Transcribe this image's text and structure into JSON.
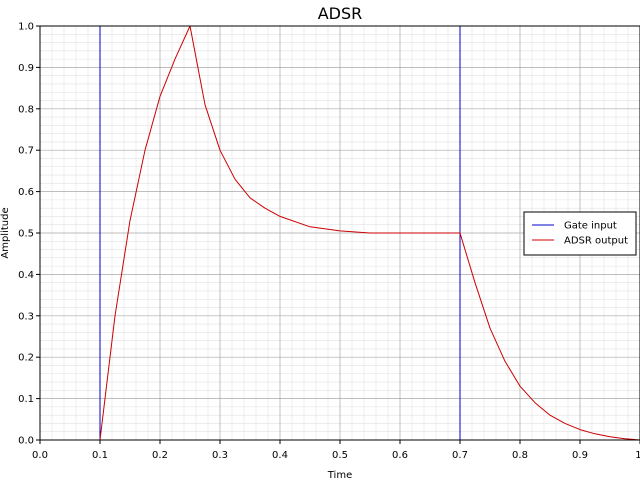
{
  "chart_data": {
    "type": "line",
    "title": "ADSR",
    "xlabel": "Time",
    "ylabel": "Amplitude",
    "xlim": [
      0.0,
      1.0
    ],
    "ylim": [
      0.0,
      1.0
    ],
    "grid": "major and minor",
    "legend_position": "right-middle",
    "xtick_labels": [
      "0.0",
      "0.1",
      "0.2",
      "0.3",
      "0.4",
      "0.5",
      "0.6",
      "0.7",
      "0.8",
      "0.9",
      "1."
    ],
    "ytick_labels": [
      "0.0",
      "0.1",
      "0.2",
      "0.3",
      "0.4",
      "0.5",
      "0.6",
      "0.7",
      "0.8",
      "0.9",
      "1.0"
    ],
    "series": [
      {
        "name": "Gate input",
        "color": "#0000cc",
        "x": [
          0.0,
          0.1,
          0.1,
          0.7,
          0.7,
          1.0
        ],
        "y": [
          0.0,
          0.0,
          1.0,
          1.0,
          0.0,
          0.0
        ]
      },
      {
        "name": "ADSR output",
        "color": "#cc0000",
        "x": [
          0.0,
          0.1,
          0.125,
          0.15,
          0.175,
          0.2,
          0.225,
          0.25,
          0.275,
          0.3,
          0.325,
          0.35,
          0.375,
          0.4,
          0.45,
          0.5,
          0.55,
          0.6,
          0.65,
          0.7,
          0.725,
          0.75,
          0.775,
          0.8,
          0.825,
          0.85,
          0.875,
          0.9,
          0.925,
          0.95,
          0.975,
          1.0
        ],
        "y": [
          0.0,
          0.0,
          0.3,
          0.53,
          0.7,
          0.83,
          0.92,
          1.0,
          0.81,
          0.7,
          0.63,
          0.585,
          0.56,
          0.54,
          0.515,
          0.505,
          0.5,
          0.5,
          0.5,
          0.5,
          0.38,
          0.27,
          0.19,
          0.13,
          0.09,
          0.06,
          0.04,
          0.025,
          0.015,
          0.008,
          0.003,
          0.0
        ]
      }
    ]
  }
}
